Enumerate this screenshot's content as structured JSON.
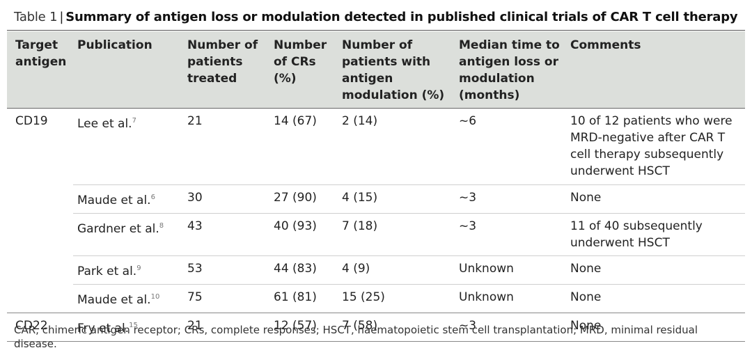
{
  "title": {
    "label": "Table 1",
    "separator": "|",
    "text": "Summary of antigen loss or modulation detected in published clinical trials of CAR T cell therapy"
  },
  "table": {
    "header": [
      "Target antigen",
      "Publication",
      "Number of patients treated",
      "Number of CRs (%)",
      "Number of patients with antigen modulation (%)",
      "Median time to antigen loss or modulation (months)",
      "Comments"
    ],
    "groups": [
      {
        "antigen": "CD19",
        "rows": [
          {
            "publication": "Lee et al.",
            "ref": "7",
            "treated": "21",
            "crs": "14 (67)",
            "modulation": "2 (14)",
            "median_time": "~6",
            "comments": "10 of 12 patients who were MRD-negative after CAR T cell therapy subsequently underwent HSCT"
          },
          {
            "publication": "Maude et al.",
            "ref": "6",
            "treated": "30",
            "crs": "27 (90)",
            "modulation": "4 (15)",
            "median_time": "~3",
            "comments": "None"
          },
          {
            "publication": "Gardner et al.",
            "ref": "8",
            "treated": "43",
            "crs": "40 (93)",
            "modulation": "7 (18)",
            "median_time": "~3",
            "comments": "11 of 40 subsequently underwent HSCT"
          },
          {
            "publication": "Park et al.",
            "ref": "9",
            "treated": "53",
            "crs": "44 (83)",
            "modulation": "4 (9)",
            "median_time": "Unknown",
            "comments": "None"
          },
          {
            "publication": "Maude et al.",
            "ref": "10",
            "treated": "75",
            "crs": "61 (81)",
            "modulation": "15 (25)",
            "median_time": "Unknown",
            "comments": "None"
          }
        ]
      },
      {
        "antigen": "CD22",
        "rows": [
          {
            "publication": "Fry et al.",
            "ref": "15",
            "treated": "21",
            "crs": "12 (57)",
            "modulation": "7 (58)",
            "median_time": "~3",
            "comments": "None"
          }
        ]
      }
    ]
  },
  "footnote": "CAR, chimeric antigen receptor; CRs, complete responses; HSCT, haematopoietic stem cell transplantation; MRD, minimal residual disease."
}
